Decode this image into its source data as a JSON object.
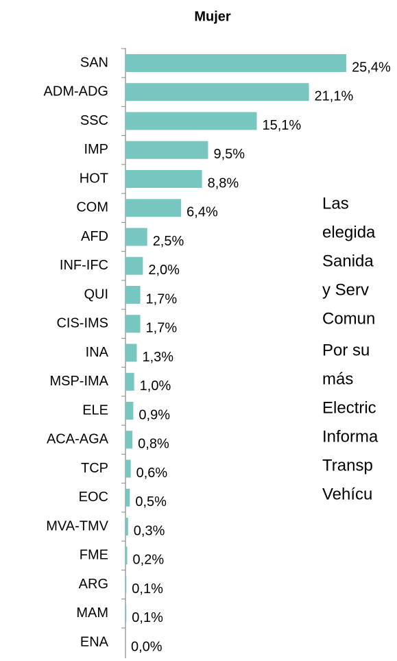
{
  "chart_data": {
    "type": "bar",
    "orientation": "horizontal",
    "title": "Mujer",
    "categories": [
      "SAN",
      "ADM-ADG",
      "SSC",
      "IMP",
      "HOT",
      "COM",
      "AFD",
      "INF-IFC",
      "QUI",
      "CIS-IMS",
      "INA",
      "MSP-IMA",
      "ELE",
      "ACA-AGA",
      "TCP",
      "EOC",
      "MVA-TMV",
      "FME",
      "ARG",
      "MAM",
      "ENA"
    ],
    "values": [
      25.4,
      21.1,
      15.1,
      9.5,
      8.8,
      6.4,
      2.5,
      2.0,
      1.7,
      1.7,
      1.3,
      1.0,
      0.9,
      0.8,
      0.6,
      0.5,
      0.3,
      0.2,
      0.1,
      0.1,
      0.0
    ],
    "value_labels": [
      "25,4%",
      "21,1%",
      "15,1%",
      "9,5%",
      "8,8%",
      "6,4%",
      "2,5%",
      "2,0%",
      "1,7%",
      "1,7%",
      "1,3%",
      "1,0%",
      "0,9%",
      "0,8%",
      "0,6%",
      "0,5%",
      "0,3%",
      "0,2%",
      "0,1%",
      "0,1%",
      "0,0%"
    ],
    "color": "#78c6c0"
  },
  "text_blocks": [
    [
      "Las",
      "elegida",
      "Sanida",
      "y Serv",
      "Comun"
    ],
    [
      "Por su",
      "más",
      "Electric",
      "Informa",
      "Transp",
      "Vehícu"
    ]
  ]
}
